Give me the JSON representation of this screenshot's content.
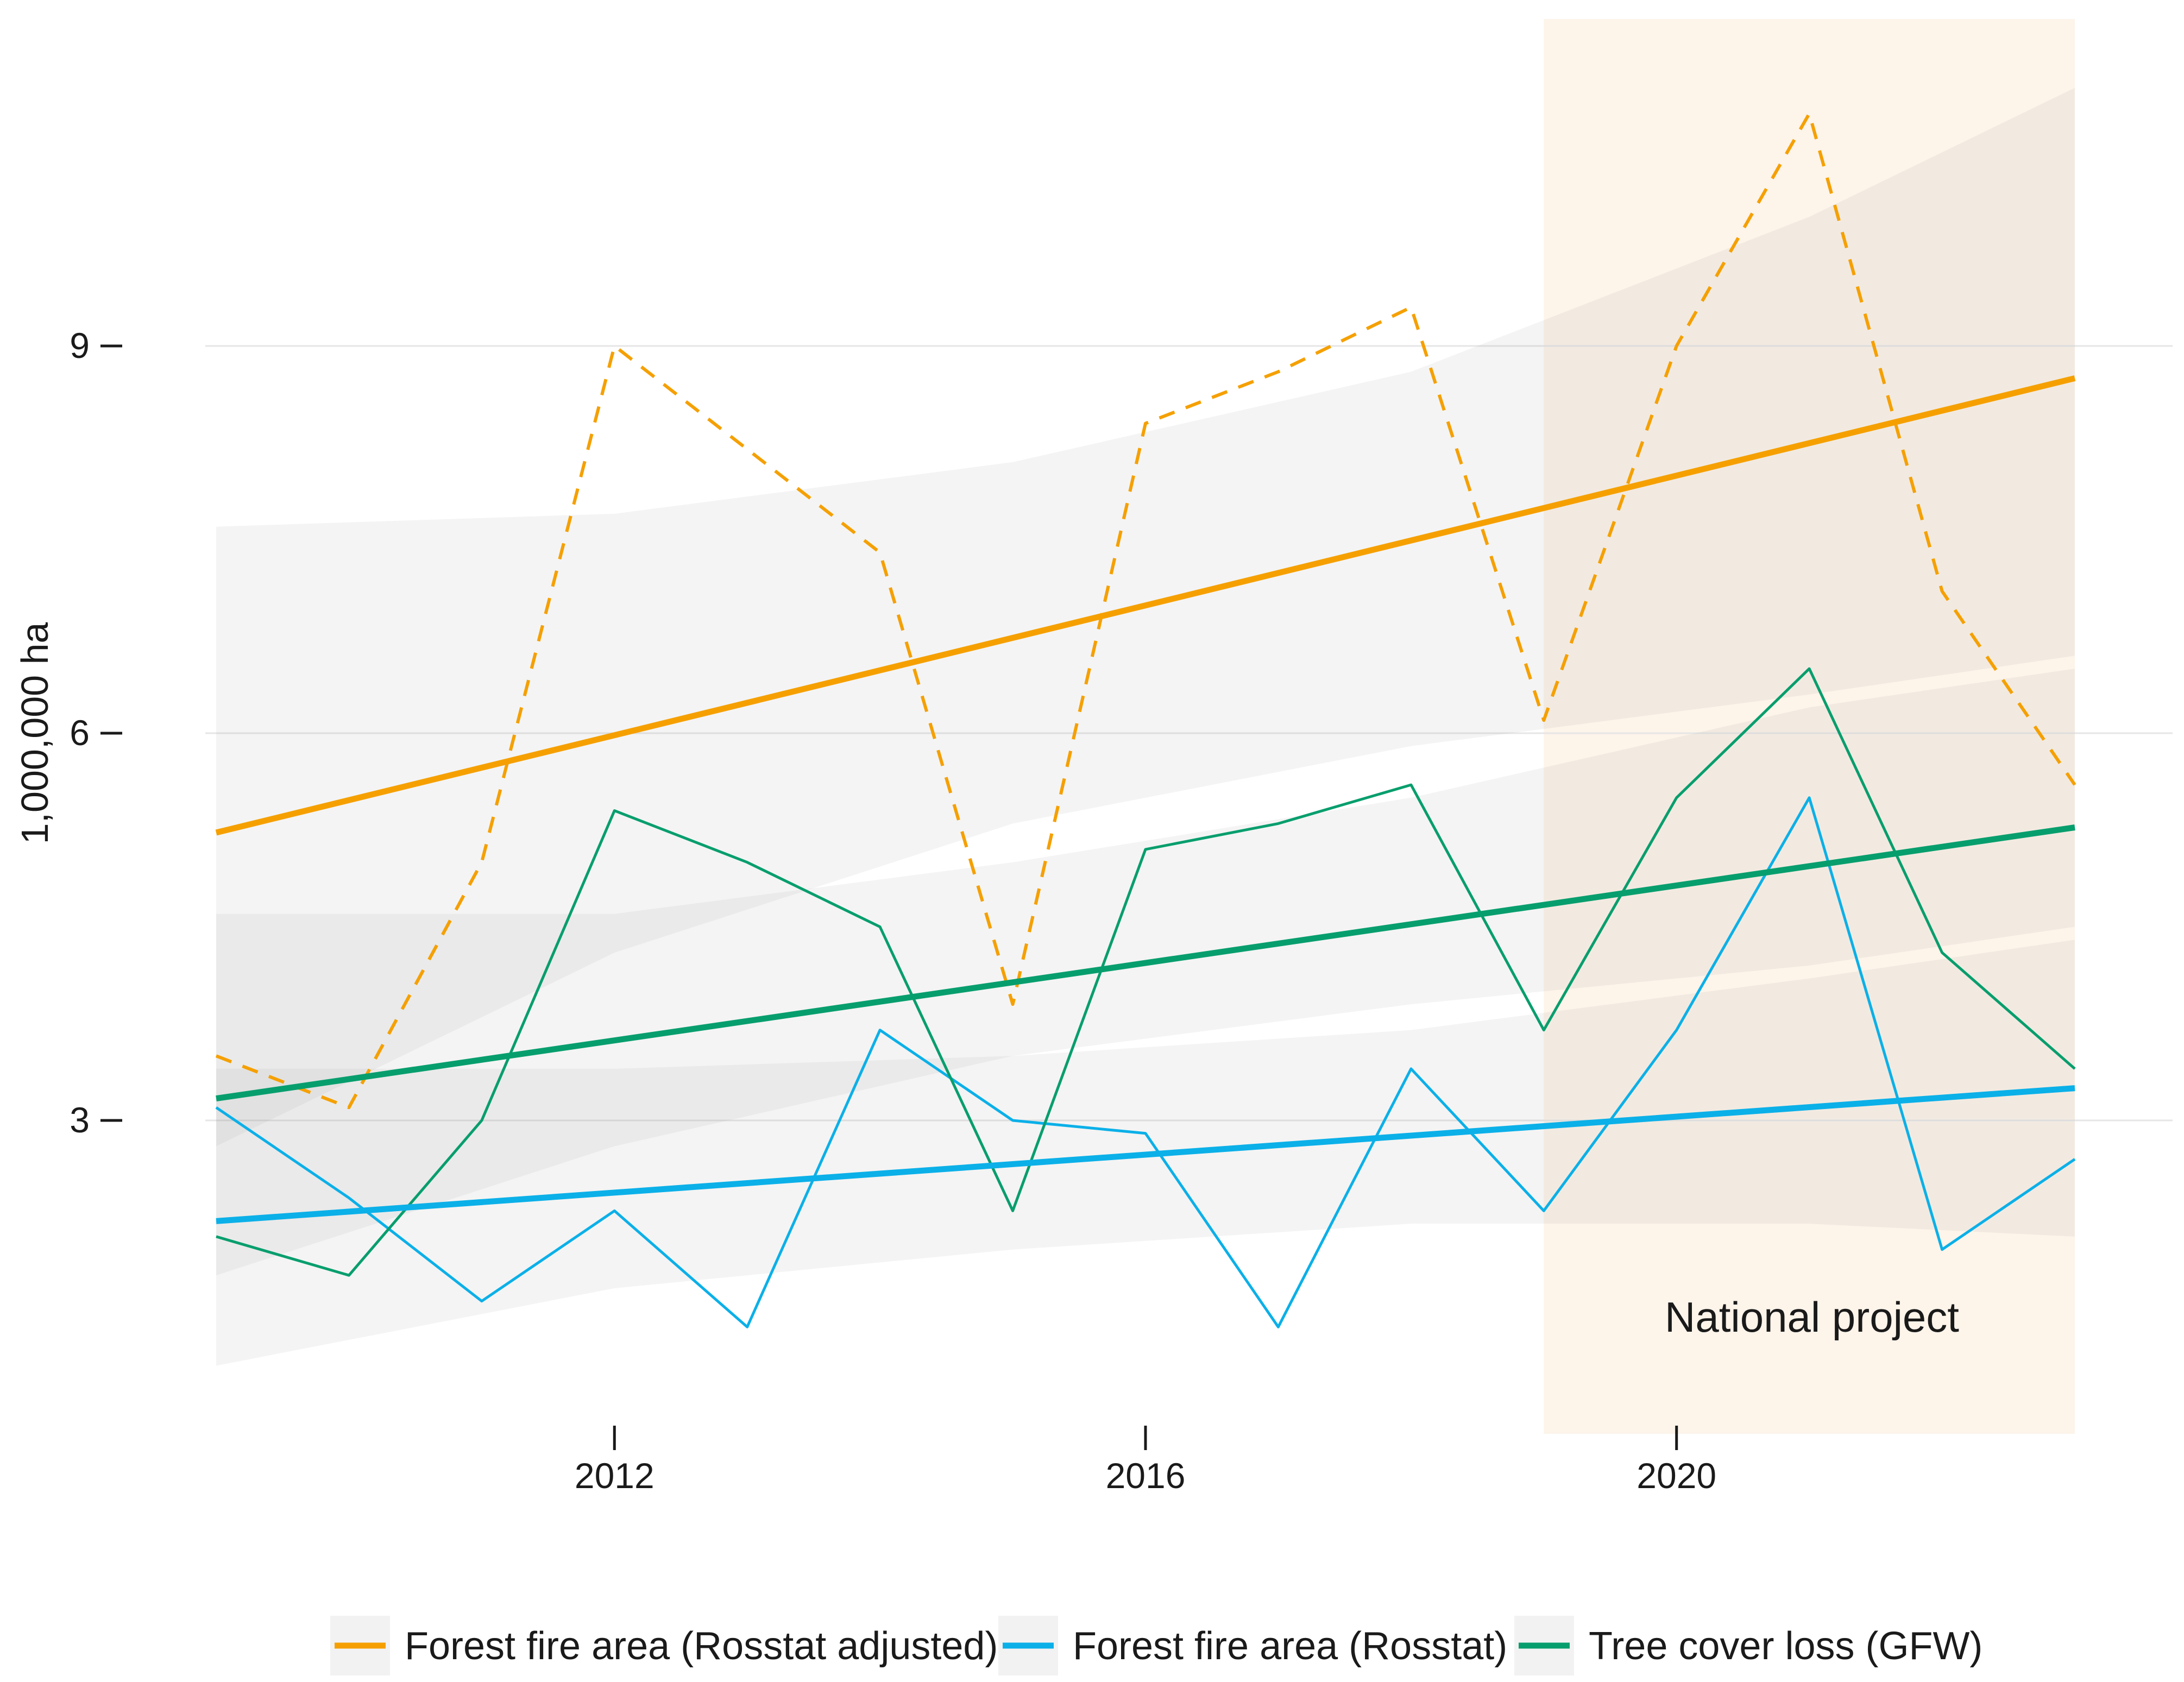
{
  "chart_data": {
    "type": "line",
    "title": "",
    "xlabel": "",
    "ylabel": "1,000,000 ha",
    "xlim": [
      2008.8,
      2023.2
    ],
    "ylim": [
      0,
      10.7
    ],
    "x_ticks": [
      2012,
      2016,
      2020
    ],
    "x_tick_labels": [
      "2012",
      "2016",
      "2020"
    ],
    "y_ticks": [
      3,
      6,
      9
    ],
    "y_tick_labels": [
      "3",
      "6",
      "9"
    ],
    "grid": true,
    "legend_position": "bottom",
    "x": [
      2009,
      2010,
      2011,
      2012,
      2013,
      2014,
      2015,
      2016,
      2017,
      2018,
      2019,
      2020,
      2021,
      2022,
      2023
    ],
    "series": [
      {
        "name": "Forest fire area (Rosstat adjusted)",
        "color": "#f5a000",
        "line_style": "dashed",
        "values": [
          3.5,
          3.1,
          5.0,
          9.0,
          8.2,
          7.4,
          3.9,
          8.4,
          8.8,
          9.3,
          6.1,
          9.0,
          10.8,
          7.1,
          5.6
        ],
        "trend": {
          "start": [
            2009,
            5.23
          ],
          "end": [
            2023,
            8.75
          ]
        },
        "ci_band": {
          "x": [
            2009,
            2012,
            2015,
            2018,
            2021,
            2023
          ],
          "lower": [
            2.8,
            4.3,
            5.3,
            5.9,
            6.3,
            6.6
          ],
          "upper": [
            7.6,
            7.7,
            8.1,
            8.8,
            10.0,
            11.0
          ]
        }
      },
      {
        "name": "Forest fire area (Rosstat)",
        "color": "#0bb0e8",
        "line_style": "solid",
        "values": [
          3.1,
          2.4,
          1.6,
          2.3,
          1.4,
          3.7,
          3.0,
          2.9,
          1.4,
          3.4,
          2.3,
          3.7,
          5.5,
          2.0,
          2.7
        ],
        "trend": {
          "start": [
            2009,
            2.22
          ],
          "end": [
            2023,
            3.25
          ]
        },
        "ci_band": {
          "x": [
            2009,
            2012,
            2015,
            2018,
            2021,
            2023
          ],
          "lower": [
            1.1,
            1.7,
            2.0,
            2.2,
            2.2,
            2.1
          ],
          "upper": [
            3.4,
            3.4,
            3.5,
            3.7,
            4.1,
            4.4
          ]
        }
      },
      {
        "name": "Tree cover loss (GFW)",
        "color": "#079e6d",
        "line_style": "solid",
        "values": [
          2.1,
          1.8,
          3.0,
          5.4,
          5.0,
          4.5,
          2.3,
          5.1,
          5.3,
          5.6,
          3.7,
          5.5,
          6.5,
          4.3,
          3.4
        ],
        "trend": {
          "start": [
            2009,
            3.17
          ],
          "end": [
            2023,
            5.27
          ]
        },
        "ci_band": {
          "x": [
            2009,
            2012,
            2015,
            2018,
            2021,
            2023
          ],
          "lower": [
            1.8,
            2.8,
            3.5,
            3.9,
            4.2,
            4.5
          ],
          "upper": [
            4.6,
            4.6,
            5.0,
            5.5,
            6.2,
            6.5
          ]
        }
      }
    ],
    "annotations": [
      {
        "text": "National project",
        "x_start": 2019,
        "x_end": 2023,
        "shading_color": "#fdf4ea"
      }
    ]
  }
}
